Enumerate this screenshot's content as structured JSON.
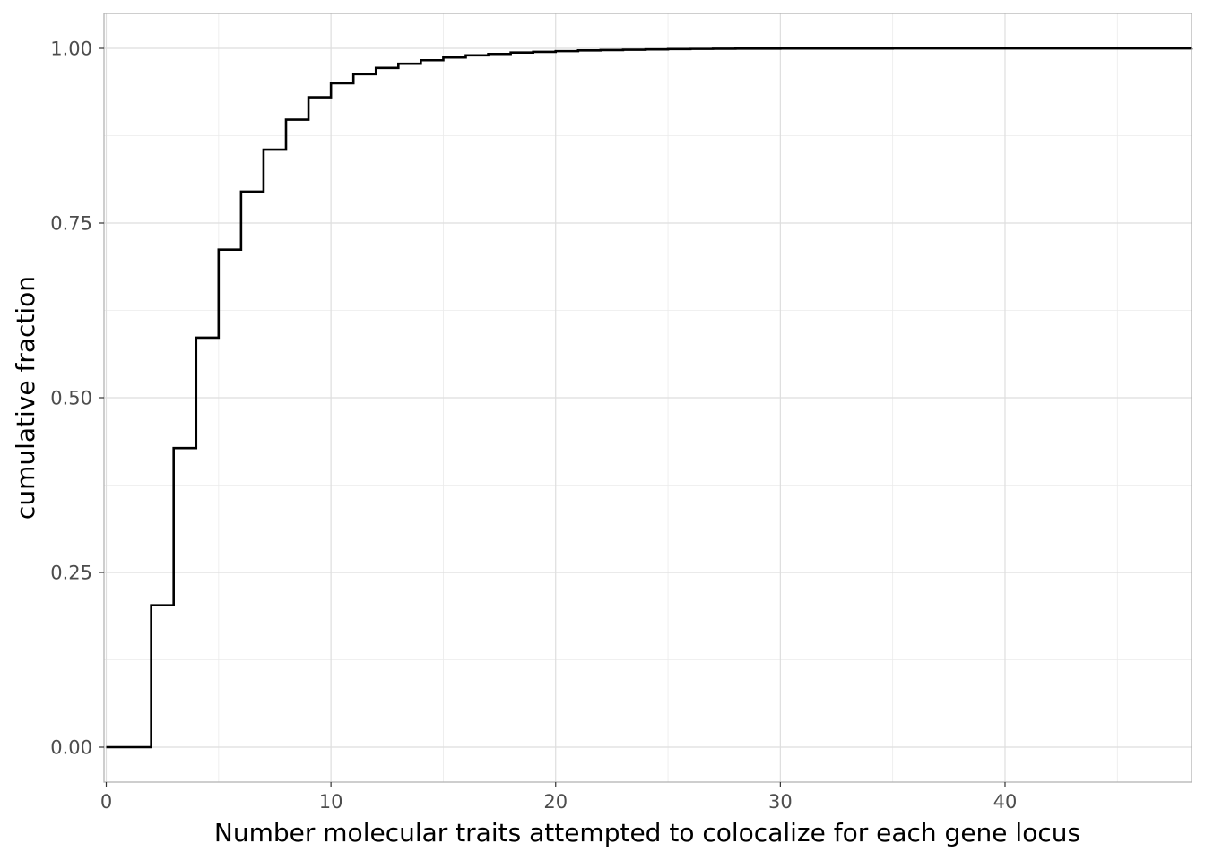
{
  "chart_data": {
    "type": "line",
    "step": true,
    "title": "",
    "xlabel": "Number molecular traits attempted to colocalize for each gene locus",
    "ylabel": "cumulative fraction",
    "xlim": [
      -0.1,
      48.3
    ],
    "ylim": [
      -0.05,
      1.05
    ],
    "x_ticks": [
      0,
      10,
      20,
      30,
      40
    ],
    "x_tick_labels": [
      "0",
      "10",
      "20",
      "30",
      "40"
    ],
    "y_ticks": [
      0,
      0.25,
      0.5,
      0.75,
      1.0
    ],
    "y_tick_labels": [
      "0.00",
      "0.25",
      "0.50",
      "0.75",
      "1.00"
    ],
    "grid": true,
    "legend": "none",
    "line_color": "#000000",
    "series": [
      {
        "x": [
          0,
          2,
          3,
          4,
          5,
          6,
          7,
          8,
          9,
          10,
          11,
          12,
          13,
          14,
          15,
          16,
          17,
          18,
          19,
          20,
          21,
          22,
          23,
          24,
          25,
          26,
          27,
          28,
          30,
          35,
          40,
          48.3
        ],
        "y": [
          0.0,
          0.203,
          0.428,
          0.586,
          0.712,
          0.795,
          0.855,
          0.898,
          0.93,
          0.95,
          0.963,
          0.972,
          0.978,
          0.983,
          0.987,
          0.99,
          0.992,
          0.994,
          0.995,
          0.996,
          0.997,
          0.9975,
          0.998,
          0.9985,
          0.999,
          0.9992,
          0.9994,
          0.9996,
          0.9998,
          0.9999,
          0.99995,
          1.0
        ]
      }
    ]
  }
}
